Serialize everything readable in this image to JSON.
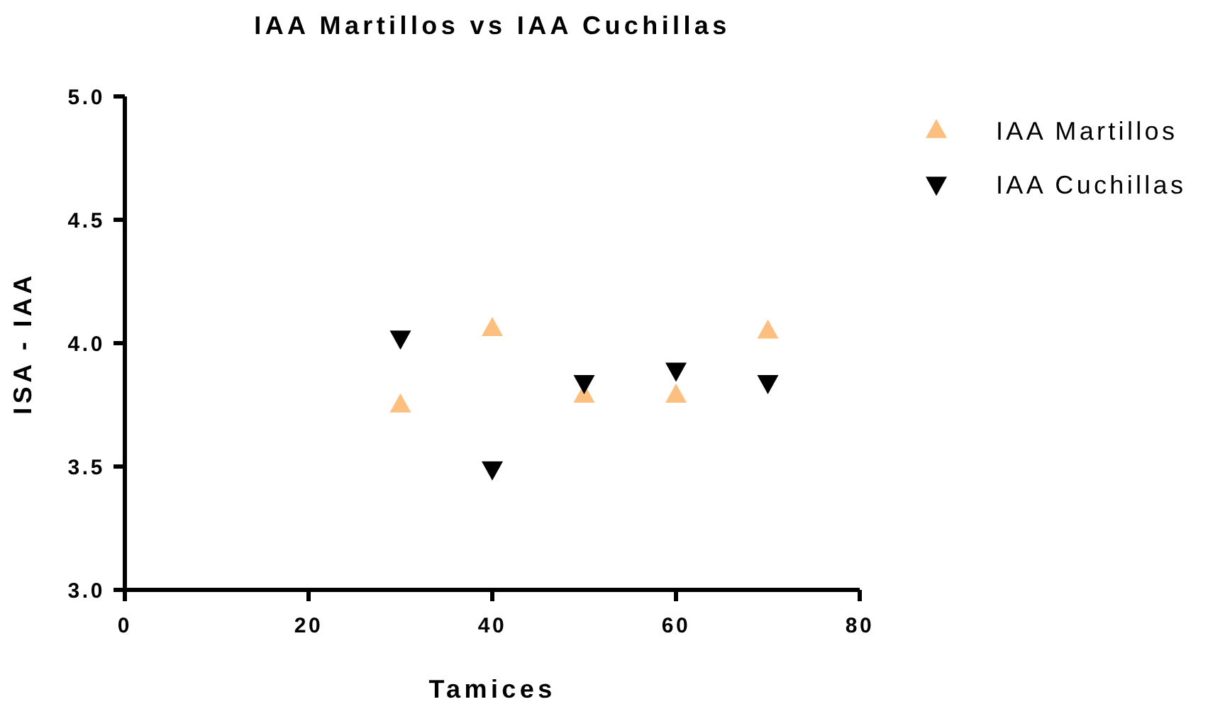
{
  "chart_data": {
    "type": "scatter",
    "title": "IAA Martillos vs IAA Cuchillas",
    "xlabel": "Tamices",
    "ylabel": "ISA - IAA",
    "x": [
      30,
      40,
      50,
      60,
      70
    ],
    "series": [
      {
        "name": "IAA Martillos",
        "color": "#fdbf80",
        "marker": "triangle",
        "values": [
          3.75,
          4.06,
          3.79,
          3.79,
          4.05
        ]
      },
      {
        "name": "IAA Cuchillas",
        "color": "#000000",
        "marker": "triangle-down",
        "values": [
          4.02,
          3.49,
          3.84,
          3.89,
          3.84
        ]
      }
    ],
    "xlim": [
      0,
      80
    ],
    "xticks": [
      0,
      20,
      40,
      60,
      80
    ],
    "ylim": [
      3.0,
      5.0
    ],
    "yticks": [
      {
        "value": 3.0,
        "label": "3.0"
      },
      {
        "value": 3.5,
        "label": "3.5"
      },
      {
        "value": 4.0,
        "label": "4.0"
      },
      {
        "value": 4.5,
        "label": "4.5"
      },
      {
        "value": 5.0,
        "label": "5.0"
      }
    ],
    "grid": false,
    "legend": "right"
  }
}
